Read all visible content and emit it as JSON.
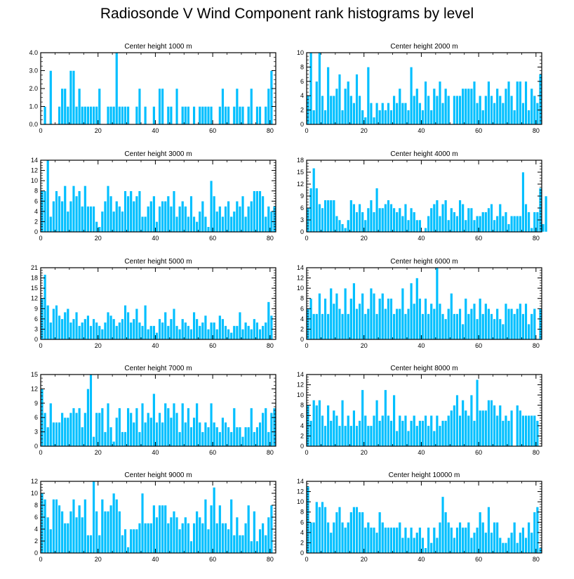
{
  "title": "Radiosonde V Wind Component rank histograms by level",
  "style": {
    "bar_fill": "#00bfff",
    "bar_stroke": "#ffffff",
    "axis_color": "#000000"
  },
  "chart_data": [
    {
      "type": "bar",
      "title": "Center height 1000 m",
      "xlim": [
        0,
        82
      ],
      "ylim": [
        0,
        4
      ],
      "xticks": [
        0,
        20,
        40,
        60,
        80
      ],
      "yticks": [
        0,
        1,
        2,
        3,
        4
      ],
      "yticklabels": [
        "0.0",
        "1.0",
        "2.0",
        "3.0",
        "4.0"
      ],
      "values": [
        0,
        1,
        0,
        3,
        0,
        0,
        1,
        2,
        2,
        1,
        3,
        3,
        1,
        2,
        1,
        1,
        1,
        1,
        1,
        1,
        2,
        0,
        0,
        1,
        1,
        1,
        4,
        1,
        1,
        1,
        1,
        0,
        0,
        1,
        2,
        0,
        1,
        0,
        0,
        1,
        0,
        2,
        2,
        0,
        1,
        1,
        0,
        2,
        0,
        1,
        1,
        1,
        0,
        1,
        0,
        1,
        1,
        1,
        1,
        1,
        0,
        0,
        1,
        2,
        1,
        1,
        0,
        1,
        2,
        1,
        1,
        0,
        1,
        2,
        0,
        1,
        1,
        0,
        1,
        2,
        3
      ]
    },
    {
      "type": "bar",
      "title": "Center height 2000 m",
      "xlim": [
        0,
        82
      ],
      "ylim": [
        0,
        10
      ],
      "xticks": [
        0,
        20,
        40,
        60,
        80
      ],
      "yticks": [
        0,
        2,
        4,
        6,
        8,
        10
      ],
      "yticklabels": [
        "0",
        "2",
        "4",
        "6",
        "8",
        "10"
      ],
      "values": [
        4,
        10,
        2,
        6,
        10,
        4,
        2,
        8,
        4,
        4,
        5,
        7,
        2,
        5,
        6,
        4,
        3,
        7,
        4,
        2,
        1,
        8,
        3,
        1,
        3,
        2,
        3,
        2,
        3,
        2,
        4,
        3,
        5,
        3,
        3,
        2,
        8,
        4,
        5,
        3,
        2,
        6,
        4,
        2,
        5,
        4,
        6,
        3,
        5,
        4,
        0,
        4,
        4,
        4,
        5,
        5,
        5,
        5,
        6,
        3,
        4,
        2,
        4,
        6,
        4,
        3,
        5,
        4,
        3,
        5,
        6,
        4,
        2,
        6,
        6,
        3,
        6,
        2,
        5,
        4,
        3,
        7
      ]
    },
    {
      "type": "bar",
      "title": "Center height 3000 m",
      "xlim": [
        0,
        82
      ],
      "ylim": [
        0,
        14
      ],
      "xticks": [
        0,
        20,
        40,
        60,
        80
      ],
      "yticks": [
        0,
        2,
        4,
        6,
        8,
        10,
        12,
        14
      ],
      "yticklabels": [
        "0",
        "2",
        "4",
        "6",
        "8",
        "10",
        "12",
        "14"
      ],
      "values": [
        8,
        8,
        14,
        3,
        6,
        8,
        7,
        6,
        9,
        4,
        6,
        9,
        7,
        8,
        5,
        9,
        5,
        5,
        5,
        2,
        1,
        4,
        6,
        9,
        7,
        4,
        6,
        5,
        4,
        8,
        7,
        8,
        6,
        7,
        8,
        3,
        3,
        5,
        6,
        7,
        2,
        5,
        6,
        6,
        7,
        5,
        8,
        3,
        5,
        6,
        5,
        3,
        7,
        3,
        2,
        4,
        6,
        3,
        1,
        10,
        7,
        4,
        5,
        3,
        5,
        6,
        3,
        4,
        6,
        5,
        7,
        3,
        5,
        6,
        8,
        8,
        8,
        7,
        3,
        5,
        4,
        5
      ]
    },
    {
      "type": "bar",
      "title": "Center height 4000 m",
      "xlim": [
        0,
        82
      ],
      "ylim": [
        0,
        18
      ],
      "xticks": [
        0,
        20,
        40,
        60,
        80
      ],
      "yticks": [
        0,
        3,
        6,
        9,
        12,
        15,
        18
      ],
      "yticklabels": [
        "0",
        "3",
        "6",
        "9",
        "12",
        "15",
        "18"
      ],
      "values": [
        6,
        11,
        16,
        11,
        7,
        6,
        8,
        8,
        8,
        8,
        4,
        3,
        2,
        1,
        3,
        8,
        7,
        5,
        7,
        5,
        3,
        6,
        8,
        5,
        11,
        6,
        6,
        7,
        8,
        7,
        6,
        5,
        6,
        4,
        7,
        3,
        6,
        5,
        3,
        3,
        0,
        1,
        4,
        6,
        7,
        8,
        4,
        7,
        8,
        3,
        6,
        5,
        4,
        8,
        7,
        3,
        6,
        6,
        3,
        4,
        4,
        5,
        5,
        6,
        7,
        3,
        4,
        7,
        4,
        5,
        2,
        4,
        4,
        4,
        4,
        15,
        7,
        5,
        1,
        5,
        5,
        11,
        2,
        9
      ]
    },
    {
      "type": "bar",
      "title": "Center height 5000 m",
      "xlim": [
        0,
        82
      ],
      "ylim": [
        0,
        21
      ],
      "xticks": [
        0,
        20,
        40,
        60,
        80
      ],
      "yticks": [
        0,
        3,
        6,
        9,
        12,
        15,
        18,
        21
      ],
      "yticklabels": [
        "0",
        "3",
        "6",
        "9",
        "12",
        "15",
        "18",
        "21"
      ],
      "values": [
        12,
        19,
        10,
        5,
        9,
        10,
        7,
        6,
        8,
        9,
        5,
        6,
        8,
        4,
        5,
        6,
        7,
        4,
        6,
        5,
        4,
        3,
        5,
        8,
        7,
        6,
        4,
        5,
        6,
        10,
        8,
        5,
        6,
        9,
        5,
        4,
        10,
        3,
        4,
        4,
        2,
        6,
        5,
        8,
        4,
        6,
        9,
        4,
        3,
        6,
        5,
        4,
        3,
        8,
        6,
        4,
        5,
        7,
        3,
        5,
        5,
        3,
        7,
        6,
        4,
        3,
        2,
        4,
        4,
        8,
        3,
        5,
        4,
        3,
        6,
        5,
        3,
        4,
        5,
        11,
        7
      ]
    },
    {
      "type": "bar",
      "title": "Center height 6000 m",
      "xlim": [
        0,
        82
      ],
      "ylim": [
        0,
        14
      ],
      "xticks": [
        0,
        20,
        40,
        60,
        80
      ],
      "yticks": [
        0,
        2,
        4,
        6,
        8,
        10,
        12,
        14
      ],
      "yticklabels": [
        "0",
        "2",
        "4",
        "6",
        "8",
        "10",
        "12",
        "14"
      ],
      "values": [
        6,
        8,
        5,
        5,
        9,
        5,
        8,
        5,
        10,
        7,
        9,
        6,
        5,
        10,
        5,
        8,
        11,
        6,
        7,
        9,
        5,
        6,
        10,
        9,
        5,
        8,
        9,
        6,
        8,
        8,
        5,
        6,
        6,
        10,
        5,
        6,
        11,
        7,
        12,
        8,
        5,
        8,
        5,
        7,
        6,
        14,
        7,
        5,
        4,
        6,
        9,
        5,
        5,
        6,
        3,
        8,
        5,
        6,
        7,
        4,
        8,
        5,
        7,
        6,
        5,
        4,
        6,
        4,
        3,
        7,
        6,
        6,
        5,
        6,
        7,
        5,
        7,
        3,
        5,
        6,
        0,
        6
      ]
    },
    {
      "type": "bar",
      "title": "Center height 7000 m",
      "xlim": [
        0,
        82
      ],
      "ylim": [
        0,
        15
      ],
      "xticks": [
        0,
        20,
        40,
        60,
        80
      ],
      "yticks": [
        0,
        3,
        6,
        9,
        12,
        15
      ],
      "yticklabels": [
        "0",
        "3",
        "6",
        "9",
        "12",
        "15"
      ],
      "values": [
        12,
        7,
        4,
        9,
        5,
        5,
        5,
        7,
        6,
        6,
        7,
        8,
        7,
        8,
        4,
        7,
        12,
        15,
        2,
        7,
        7,
        8,
        3,
        9,
        4,
        1,
        6,
        8,
        3,
        3,
        8,
        7,
        5,
        8,
        3,
        9,
        5,
        7,
        6,
        11,
        5,
        7,
        5,
        9,
        8,
        6,
        9,
        7,
        3,
        9,
        5,
        8,
        4,
        6,
        9,
        5,
        3,
        5,
        4,
        9,
        5,
        4,
        3,
        6,
        5,
        4,
        3,
        8,
        4,
        4,
        2,
        4,
        4,
        8,
        3,
        4,
        5,
        7,
        8,
        3,
        7,
        8
      ]
    },
    {
      "type": "bar",
      "title": "Center height 8000 m",
      "xlim": [
        0,
        82
      ],
      "ylim": [
        0,
        14
      ],
      "xticks": [
        0,
        20,
        40,
        60,
        80
      ],
      "yticks": [
        0,
        2,
        4,
        6,
        8,
        10,
        12,
        14
      ],
      "yticklabels": [
        "0",
        "2",
        "4",
        "6",
        "8",
        "10",
        "12",
        "14"
      ],
      "values": [
        8,
        5,
        9,
        8,
        9,
        6,
        4,
        8,
        5,
        7,
        6,
        4,
        9,
        4,
        6,
        4,
        7,
        4,
        5,
        11,
        6,
        4,
        4,
        6,
        9,
        5,
        6,
        11,
        6,
        5,
        10,
        3,
        6,
        5,
        6,
        3,
        5,
        6,
        4,
        5,
        5,
        6,
        4,
        6,
        3,
        6,
        4,
        5,
        5,
        6,
        7,
        8,
        10,
        6,
        9,
        7,
        6,
        10,
        5,
        13,
        7,
        7,
        7,
        9,
        9,
        8,
        6,
        8,
        5,
        6,
        5,
        7,
        0,
        8,
        7,
        6,
        6,
        6,
        6,
        6,
        5
      ]
    },
    {
      "type": "bar",
      "title": "Center height 9000 m",
      "xlim": [
        0,
        82
      ],
      "ylim": [
        0,
        12
      ],
      "xticks": [
        0,
        20,
        40,
        60,
        80
      ],
      "yticks": [
        0,
        2,
        4,
        6,
        8,
        10,
        12
      ],
      "yticklabels": [
        "0",
        "2",
        "4",
        "6",
        "8",
        "10",
        "12"
      ],
      "values": [
        10,
        9,
        6,
        4,
        9,
        9,
        8,
        7,
        5,
        5,
        7,
        9,
        6,
        8,
        6,
        9,
        3,
        3,
        12,
        7,
        3,
        9,
        7,
        7,
        8,
        10,
        9,
        7,
        3,
        4,
        1,
        4,
        4,
        4,
        5,
        10,
        5,
        5,
        5,
        8,
        6,
        8,
        8,
        8,
        5,
        6,
        7,
        6,
        4,
        5,
        6,
        5,
        2,
        5,
        7,
        6,
        5,
        9,
        4,
        8,
        11,
        5,
        8,
        5,
        5,
        4,
        9,
        3,
        6,
        3,
        3,
        5,
        8,
        2,
        7,
        2,
        4,
        5,
        3,
        6,
        8
      ]
    },
    {
      "type": "bar",
      "title": "Center height 10000 m",
      "xlim": [
        0,
        82
      ],
      "ylim": [
        0,
        14
      ],
      "xticks": [
        0,
        20,
        40,
        60,
        80
      ],
      "yticks": [
        0,
        2,
        4,
        6,
        8,
        10,
        12,
        14
      ],
      "yticklabels": [
        "0",
        "2",
        "4",
        "6",
        "8",
        "10",
        "12",
        "14"
      ],
      "values": [
        13,
        6,
        6,
        10,
        9,
        10,
        9,
        6,
        4,
        6,
        8,
        9,
        6,
        5,
        6,
        8,
        9,
        9,
        8,
        8,
        5,
        6,
        5,
        5,
        4,
        8,
        6,
        5,
        5,
        5,
        5,
        5,
        6,
        3,
        5,
        3,
        5,
        3,
        4,
        5,
        3,
        1,
        5,
        2,
        5,
        3,
        6,
        11,
        8,
        6,
        5,
        3,
        5,
        6,
        5,
        5,
        6,
        3,
        4,
        5,
        8,
        6,
        4,
        9,
        4,
        6,
        6,
        3,
        2,
        2,
        3,
        4,
        6,
        2,
        4,
        5,
        3,
        6,
        4,
        8,
        9,
        1
      ]
    }
  ]
}
